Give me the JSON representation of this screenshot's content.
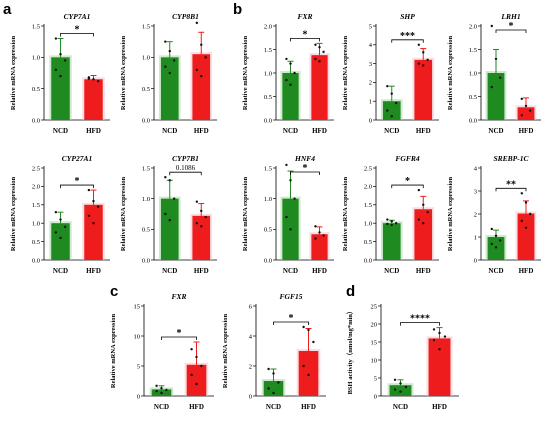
{
  "figure": {
    "panel_labels": [
      "a",
      "b",
      "c",
      "d"
    ]
  },
  "colors": {
    "ncd": "#1f8a1f",
    "hfd": "#ee1c1c",
    "ncd_glow": "#a6d8a6",
    "hfd_glow": "#f6c0c8"
  },
  "chart_data": [
    {
      "id": "a1",
      "panel": "a",
      "type": "bar",
      "title": "CYP7A1",
      "ylabel": "Relative mRNA expression",
      "categories": [
        "NCD",
        "HFD"
      ],
      "values": [
        1.0,
        0.65
      ],
      "errors": [
        0.3,
        0.06
      ],
      "points": [
        [
          1.3,
          1.05,
          0.95,
          0.8,
          0.7
        ],
        [
          0.68,
          0.65,
          0.62,
          0.66
        ]
      ],
      "ylim": [
        0,
        1.5
      ],
      "yticks": [
        0.0,
        0.5,
        1.0,
        1.5
      ],
      "ytick_labels": [
        "0.0",
        "0.5",
        "1.0",
        "1.5"
      ],
      "significance": "*"
    },
    {
      "id": "a2",
      "panel": "a",
      "type": "bar",
      "title": "CYP8B1",
      "ylabel": "Relative mRNA expression",
      "categories": [
        "NCD",
        "HFD"
      ],
      "values": [
        1.0,
        1.05
      ],
      "errors": [
        0.25,
        0.35
      ],
      "points": [
        [
          1.25,
          1.1,
          0.95,
          0.85,
          0.75
        ],
        [
          1.55,
          1.2,
          1.0,
          0.8,
          0.7
        ]
      ],
      "ylim": [
        0,
        1.5
      ],
      "yticks": [
        0.0,
        0.5,
        1.0,
        1.5
      ],
      "ytick_labels": [
        "0.0",
        "0.5",
        "1.0",
        "1.5"
      ],
      "significance": ""
    },
    {
      "id": "b1",
      "panel": "b",
      "type": "bar",
      "title": "FXR",
      "ylabel": "Relative mRNA expression",
      "categories": [
        "NCD",
        "HFD"
      ],
      "values": [
        1.0,
        1.38
      ],
      "errors": [
        0.25,
        0.25
      ],
      "points": [
        [
          1.3,
          1.2,
          1.0,
          0.85,
          0.75
        ],
        [
          1.6,
          1.55,
          1.45,
          1.3,
          1.25
        ]
      ],
      "ylim": [
        0,
        2.0
      ],
      "yticks": [
        0.0,
        0.5,
        1.0,
        1.5,
        2.0
      ],
      "ytick_labels": [
        "0.0",
        "0.5",
        "1.0",
        "1.5",
        "2.0"
      ],
      "significance": "*"
    },
    {
      "id": "b2",
      "panel": "b",
      "type": "bar",
      "title": "SHP",
      "ylabel": "Relative mRNA expression",
      "categories": [
        "NCD",
        "HFD"
      ],
      "values": [
        1.0,
        3.2
      ],
      "errors": [
        0.8,
        0.6
      ],
      "points": [
        [
          1.8,
          1.4,
          0.9,
          0.5,
          0.2
        ],
        [
          4.0,
          3.6,
          3.2,
          3.0,
          2.9
        ]
      ],
      "ylim": [
        0,
        5
      ],
      "yticks": [
        0,
        1,
        2,
        3,
        4,
        5
      ],
      "ytick_labels": [
        "0",
        "1",
        "2",
        "3",
        "4",
        "5"
      ],
      "significance": "***"
    },
    {
      "id": "b3",
      "panel": "b",
      "type": "bar",
      "title": "LRH1",
      "ylabel": "Relative mRNA expression",
      "categories": [
        "NCD",
        "HFD"
      ],
      "values": [
        1.0,
        0.27
      ],
      "errors": [
        0.5,
        0.2
      ],
      "points": [
        [
          2.0,
          1.3,
          0.9,
          0.7
        ],
        [
          0.45,
          0.3,
          0.2,
          0.1
        ]
      ],
      "ylim": [
        0,
        2.0
      ],
      "yticks": [
        0.0,
        0.5,
        1.0,
        1.5,
        2.0
      ],
      "ytick_labels": [
        "0.0",
        "0.5",
        "1.0",
        "1.5",
        "2.0"
      ],
      "significance": "*"
    },
    {
      "id": "a3",
      "panel": "a",
      "type": "bar",
      "title": "CYP27A1",
      "ylabel": "Relative mRNA expression",
      "categories": [
        "NCD",
        "HFD"
      ],
      "values": [
        1.0,
        1.5
      ],
      "errors": [
        0.3,
        0.4
      ],
      "points": [
        [
          1.3,
          1.1,
          0.9,
          0.75,
          0.6
        ],
        [
          1.9,
          1.6,
          1.45,
          1.2,
          1.0
        ]
      ],
      "ylim": [
        0,
        2.5
      ],
      "yticks": [
        0.0,
        0.5,
        1.0,
        1.5,
        2.0,
        2.5
      ],
      "ytick_labels": [
        "0.0",
        "0.5",
        "1.0",
        "1.5",
        "2.0",
        "2.5"
      ],
      "significance": "*"
    },
    {
      "id": "a4",
      "panel": "a",
      "type": "bar",
      "title": "CYP7B1",
      "ylabel": "Relative mRNA expression",
      "categories": [
        "NCD",
        "HFD"
      ],
      "values": [
        1.0,
        0.72
      ],
      "errors": [
        0.3,
        0.2
      ],
      "points": [
        [
          1.35,
          1.3,
          1.0,
          0.75,
          0.65
        ],
        [
          0.95,
          0.8,
          0.7,
          0.6,
          0.55
        ]
      ],
      "ylim": [
        0,
        1.5
      ],
      "yticks": [
        0.0,
        0.5,
        1.0,
        1.5
      ],
      "ytick_labels": [
        "0.0",
        "0.5",
        "1.0",
        "1.5"
      ],
      "significance": "0.1086"
    },
    {
      "id": "b4",
      "panel": "b",
      "type": "bar",
      "title": "HNF4",
      "ylabel": "Relative mRNA expression",
      "categories": [
        "NCD",
        "HFD"
      ],
      "values": [
        1.0,
        0.42
      ],
      "errors": [
        0.45,
        0.12
      ],
      "points": [
        [
          1.55,
          1.3,
          1.0,
          0.7,
          0.5
        ],
        [
          0.55,
          0.45,
          0.4,
          0.35
        ]
      ],
      "ylim": [
        0,
        1.5
      ],
      "yticks": [
        0.0,
        0.5,
        1.0,
        1.5
      ],
      "ytick_labels": [
        "0.0",
        "0.5",
        "1.0",
        "1.5"
      ],
      "significance": "*"
    },
    {
      "id": "b5",
      "panel": "b",
      "type": "bar",
      "title": "FGFR4",
      "ylabel": "Relative mRNA expression",
      "categories": [
        "NCD",
        "HFD"
      ],
      "values": [
        1.0,
        1.38
      ],
      "errors": [
        0.08,
        0.35
      ],
      "points": [
        [
          1.1,
          1.05,
          1.0,
          0.98,
          0.95
        ],
        [
          1.9,
          1.5,
          1.3,
          1.1,
          1.0
        ]
      ],
      "ylim": [
        0,
        2.5
      ],
      "yticks": [
        0.0,
        0.5,
        1.0,
        1.5,
        2.0,
        2.5
      ],
      "ytick_labels": [
        "0.0",
        "0.5",
        "1.0",
        "1.5",
        "2.0",
        "2.5"
      ],
      "significance": "*"
    },
    {
      "id": "b6",
      "panel": "b",
      "type": "bar",
      "title": "SREBP-1C",
      "ylabel": "Relative mRNA expression",
      "categories": [
        "NCD",
        "HFD"
      ],
      "values": [
        1.0,
        2.02
      ],
      "errors": [
        0.3,
        0.55
      ],
      "points": [
        [
          1.35,
          1.05,
          0.85,
          0.7,
          0.55
        ],
        [
          2.9,
          2.5,
          2.0,
          1.7,
          1.4
        ]
      ],
      "ylim": [
        0,
        4
      ],
      "yticks": [
        0,
        1,
        2,
        3,
        4
      ],
      "ytick_labels": [
        "0",
        "1",
        "2",
        "3",
        "4"
      ],
      "significance": "**"
    },
    {
      "id": "c1",
      "panel": "c",
      "type": "bar",
      "title": "FXR",
      "ylabel": "Relative mRNA expression",
      "categories": [
        "NCD",
        "HFD"
      ],
      "values": [
        1.1,
        5.2
      ],
      "errors": [
        0.6,
        3.8
      ],
      "points": [
        [
          1.7,
          1.3,
          1.0,
          0.8,
          0.5
        ],
        [
          7.8,
          6.5,
          5.0,
          3.5,
          2.0
        ]
      ],
      "ylim": [
        0,
        15
      ],
      "yticks": [
        0,
        5,
        10,
        15
      ],
      "ytick_labels": [
        "0",
        "5",
        "10",
        "15"
      ],
      "significance": "*"
    },
    {
      "id": "c2",
      "panel": "c",
      "type": "bar",
      "title": "FGF15",
      "ylabel": "Relative mRNA expression",
      "categories": [
        "NCD",
        "HFD"
      ],
      "values": [
        1.0,
        3.0
      ],
      "errors": [
        0.8,
        1.5
      ],
      "points": [
        [
          1.8,
          1.5,
          0.9,
          0.5,
          0.2
        ],
        [
          4.6,
          4.4,
          3.6,
          2.0,
          1.4
        ]
      ],
      "ylim": [
        0,
        6
      ],
      "yticks": [
        0,
        2,
        4,
        6
      ],
      "ytick_labels": [
        "0",
        "2",
        "4",
        "6"
      ],
      "significance": "*"
    },
    {
      "id": "d1",
      "panel": "d",
      "type": "bar",
      "title": "",
      "ylabel": "BSH activity（nmol/mg*min）",
      "categories": [
        "NCD",
        "HFD"
      ],
      "values": [
        3.0,
        16.0
      ],
      "errors": [
        1.5,
        3.0
      ],
      "points": [
        [
          4.5,
          3.5,
          2.5,
          1.8,
          1.2
        ],
        [
          18.5,
          17.5,
          16.5,
          15.5,
          13.0
        ]
      ],
      "ylim": [
        0,
        25
      ],
      "yticks": [
        0,
        5,
        10,
        15,
        20,
        25
      ],
      "ytick_labels": [
        "0",
        "5",
        "10",
        "15",
        "20",
        "25"
      ],
      "significance": "****"
    }
  ]
}
